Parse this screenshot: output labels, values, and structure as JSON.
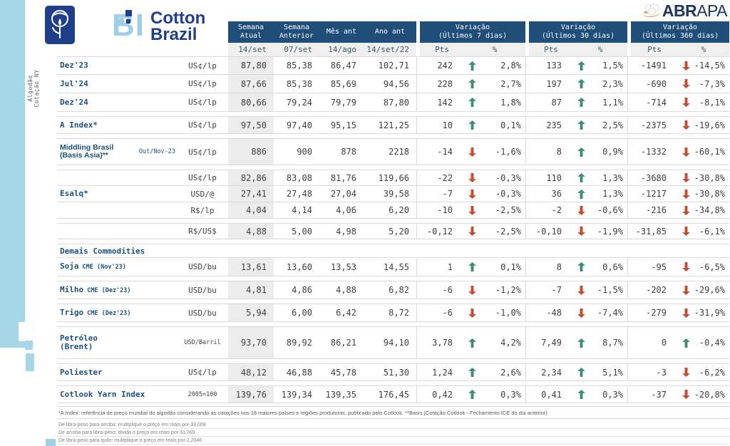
{
  "colors": {
    "header_navy": "#1F4E79",
    "brand_navy": "#1F3E8C",
    "light_blue": "#A5D6E6",
    "abrapa_navy": "#1D3560",
    "gold": "#D3A94F",
    "up_green": "#3E8E6E",
    "down_red": "#C74A2C"
  },
  "brand": {
    "bi": "BI",
    "name_line1": "Cotton",
    "name_line2": "Brazil",
    "abrapa_bold": "ABR",
    "abrapa_regular": "APA"
  },
  "side_label": {
    "line1": "Algodão",
    "line2": "Cotação NY"
  },
  "header": {
    "value_cols": [
      {
        "l1": "Semana",
        "l2": "Atual",
        "sub": "14/set"
      },
      {
        "l1": "Semana",
        "l2": "Anterior",
        "sub": "07/set"
      },
      {
        "l1": "Mês ant",
        "l2": "",
        "sub": "14/ago"
      },
      {
        "l1": "Ano ant",
        "l2": "",
        "sub": "14/set/22"
      }
    ],
    "variation_groups": [
      {
        "title": "Variação",
        "subtitle": "(Últimos 7 dias)",
        "pts": "Pts",
        "pct": "%"
      },
      {
        "title": "Variação",
        "subtitle": "(Últimos 30 dias)",
        "pts": "Pts",
        "pct": "%"
      },
      {
        "title": "Variação",
        "subtitle": "(Últimos 360 dias)",
        "pts": "Pts",
        "pct": "%"
      }
    ]
  },
  "table": {
    "rows": [
      {
        "label": "Dez'23",
        "unit": "US¢/lp",
        "h": 26,
        "values": [
          "87,80",
          "85,38",
          "86,47",
          "102,71"
        ],
        "v7": {
          "pts": "242",
          "dir": "up",
          "pct": "2,8%"
        },
        "v30": {
          "pts": "133",
          "dir": "up",
          "pct": "1,5%"
        },
        "v360": {
          "pts": "-1491",
          "dir": "down",
          "pct": "-14,5%"
        }
      },
      {
        "label": "Jul'24",
        "unit": "US¢/lp",
        "h": 26,
        "values": [
          "87,66",
          "85,38",
          "85,69",
          "94,56"
        ],
        "v7": {
          "pts": "228",
          "dir": "up",
          "pct": "2,7%"
        },
        "v30": {
          "pts": "197",
          "dir": "up",
          "pct": "2,3%"
        },
        "v360": {
          "pts": "-690",
          "dir": "down",
          "pct": "-7,3%"
        }
      },
      {
        "label": "Dez'24",
        "unit": "US¢/lp",
        "h": 26,
        "values": [
          "80,66",
          "79,24",
          "79,79",
          "87,80"
        ],
        "v7": {
          "pts": "142",
          "dir": "up",
          "pct": "1,8%"
        },
        "v30": {
          "pts": "87",
          "dir": "up",
          "pct": "1,1%"
        },
        "v360": {
          "pts": "-714",
          "dir": "down",
          "pct": "-8,1%"
        }
      },
      {
        "label": "A Index*",
        "unit": "US¢/lp",
        "h": 25,
        "gap": true,
        "values": [
          "97,50",
          "97,40",
          "95,15",
          "121,25"
        ],
        "v7": {
          "pts": "10",
          "dir": "up",
          "pct": "0,1%"
        },
        "v30": {
          "pts": "235",
          "dir": "up",
          "pct": "2,5%"
        },
        "v360": {
          "pts": "-2375",
          "dir": "down",
          "pct": "-19,6%"
        }
      },
      {
        "label": "Middling Brasil",
        "label2": "(Basis Asia)**",
        "sans": true,
        "note": "Out/Nov-23",
        "unit": "US¢/lp",
        "h": 38,
        "gap": true,
        "values": [
          "886",
          "900",
          "878",
          "2218"
        ],
        "v7": {
          "pts": "-14",
          "dir": "down",
          "pct": "-1,6%"
        },
        "v30": {
          "pts": "8",
          "dir": "up",
          "pct": "0,9%"
        },
        "v360": {
          "pts": "-1332",
          "dir": "down",
          "pct": "-60,1%"
        }
      },
      {
        "label": "",
        "unit": "US¢/lp",
        "h": 23,
        "gap": true,
        "values": [
          "82,86",
          "83,08",
          "81,76",
          "119,66"
        ],
        "v7": {
          "pts": "-22",
          "dir": "down",
          "pct": "-0,3%"
        },
        "v30": {
          "pts": "110",
          "dir": "up",
          "pct": "1,3%"
        },
        "v360": {
          "pts": "-3680",
          "dir": "down",
          "pct": "-30,8%"
        }
      },
      {
        "label": "Esalq*",
        "unit": "USD/@",
        "h": 23,
        "values": [
          "27,41",
          "27,48",
          "27,04",
          "39,58"
        ],
        "v7": {
          "pts": "-7",
          "dir": "down",
          "pct": "-0,3%"
        },
        "v30": {
          "pts": "36",
          "dir": "up",
          "pct": "1,3%"
        },
        "v360": {
          "pts": "-1217",
          "dir": "down",
          "pct": "-30,8%"
        }
      },
      {
        "label": "",
        "unit": "R$/lp",
        "h": 23,
        "values": [
          "4,04",
          "4,14",
          "4,06",
          "6,20"
        ],
        "v7": {
          "pts": "-10",
          "dir": "down",
          "pct": "-2,5%"
        },
        "v30": {
          "pts": "-2",
          "dir": "down",
          "pct": "-0,6%"
        },
        "v360": {
          "pts": "-216",
          "dir": "down",
          "pct": "-34,8%"
        }
      },
      {
        "label": "",
        "unit": "R$/US$",
        "h": 23,
        "gap": true,
        "values": [
          "4,88",
          "5,00",
          "4,98",
          "5,20"
        ],
        "v7": {
          "pts": "-0,12",
          "dir": "down",
          "pct": "-2,5%"
        },
        "v30": {
          "pts": "-0,10",
          "dir": "down",
          "pct": "-1,9%"
        },
        "v360": {
          "pts": "-31,85",
          "dir": "down",
          "pct": "-6,1%"
        }
      },
      {
        "type": "section",
        "label": "Demais Commodities",
        "h": 20,
        "gap": true
      },
      {
        "label": "Soja",
        "label_sub": "CME (Nov'23)",
        "unit": "USD/bu",
        "h": 26,
        "values": [
          "13,61",
          "13,60",
          "13,53",
          "14,55"
        ],
        "v7": {
          "pts": "1",
          "dir": "up",
          "pct": "0,1%"
        },
        "v30": {
          "pts": "8",
          "dir": "up",
          "pct": "0,6%"
        },
        "v360": {
          "pts": "-95",
          "dir": "down",
          "pct": "-6,5%"
        }
      },
      {
        "label": "Milho",
        "label_sub": "CME (Dez'23)",
        "unit": "USD/bu",
        "h": 26,
        "gap": true,
        "values": [
          "4,81",
          "4,86",
          "4,88",
          "6,82"
        ],
        "v7": {
          "pts": "-6",
          "dir": "down",
          "pct": "-1,2%"
        },
        "v30": {
          "pts": "-7",
          "dir": "down",
          "pct": "-1,5%"
        },
        "v360": {
          "pts": "-202",
          "dir": "down",
          "pct": "-29,6%"
        }
      },
      {
        "label": "Trigo",
        "label_sub": "CME (Dez'23)",
        "unit": "USD/bu",
        "h": 26,
        "gap": true,
        "values": [
          "5,94",
          "6,00",
          "6,42",
          "8,72"
        ],
        "v7": {
          "pts": "-6",
          "dir": "down",
          "pct": "-1,0%"
        },
        "v30": {
          "pts": "-48",
          "dir": "down",
          "pct": "-7,4%"
        },
        "v360": {
          "pts": "-279",
          "dir": "down",
          "pct": "-31,9%"
        }
      },
      {
        "label": "Petróleo",
        "label2": "(Brent)",
        "unit": "USD/Barril",
        "unit_small": true,
        "h": 46,
        "gap": true,
        "values": [
          "93,70",
          "89,92",
          "86,21",
          "94,10"
        ],
        "v7": {
          "pts": "3,78",
          "dir": "up",
          "pct": "4,2%"
        },
        "v30": {
          "pts": "7,49",
          "dir": "up",
          "pct": "8,7%"
        },
        "v360": {
          "pts": "0",
          "dir": "up",
          "pct": "-0,4%"
        }
      },
      {
        "label": "Poliester",
        "unit": "US¢/lp",
        "h": 25,
        "gap": true,
        "values": [
          "48,12",
          "46,88",
          "45,78",
          "51,30"
        ],
        "v7": {
          "pts": "1,24",
          "dir": "up",
          "pct": "2,6%"
        },
        "v30": {
          "pts": "2,34",
          "dir": "up",
          "pct": "5,1%"
        },
        "v360": {
          "pts": "-3",
          "dir": "down",
          "pct": "-6,2%"
        }
      },
      {
        "label": "Cotlook Yarn Index",
        "unit": "2005=100",
        "unit_small": true,
        "h": 25,
        "gap": true,
        "values": [
          "139,76",
          "139,34",
          "139,35",
          "176,45"
        ],
        "v7": {
          "pts": "0,42",
          "dir": "up",
          "pct": "0,3%"
        },
        "v30": {
          "pts": "0,41",
          "dir": "up",
          "pct": "0,3%"
        },
        "v360": {
          "pts": "-37",
          "dir": "down",
          "pct": "-20,8%"
        }
      }
    ]
  },
  "footnote": "*A Index: referência de preço mundial do algodão considerando as cotações nos 18 maiores países e regiões produtoras, publicado pelo Cotlook. **Basis (Cotação Cotlook - Fechamento ICE do dia anterior)",
  "conversions": [
    "De libra-peso para arroba: multiplique o preço em reais por 33,069",
    "De arroba para libra-peso: divida o preço em reais por 33,069.",
    "De libra-peso para quilo: multiplique o preço em reais por 2,2046"
  ]
}
